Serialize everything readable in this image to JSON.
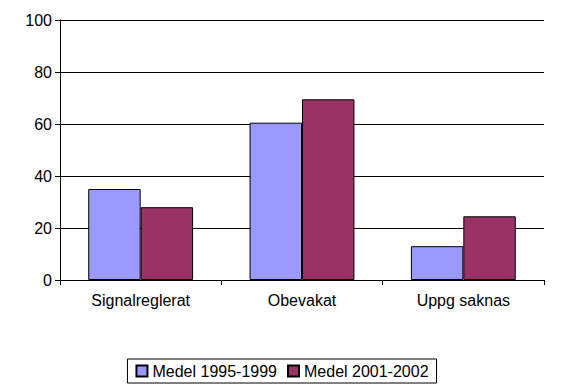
{
  "chart_data": {
    "type": "bar",
    "categories": [
      "Signalreglerat",
      "Obevakat",
      "Uppg saknas"
    ],
    "series": [
      {
        "name": "Medel 1995-1999",
        "color": "#9999ff",
        "values": [
          35,
          60.5,
          13
        ]
      },
      {
        "name": "Medel 2001-2002",
        "color": "#993366",
        "values": [
          28,
          69.5,
          24.5
        ]
      }
    ],
    "ylim": [
      0,
      100
    ],
    "yticks": [
      0,
      20,
      40,
      60,
      80,
      100
    ],
    "grid": true,
    "legend": "bottom"
  }
}
